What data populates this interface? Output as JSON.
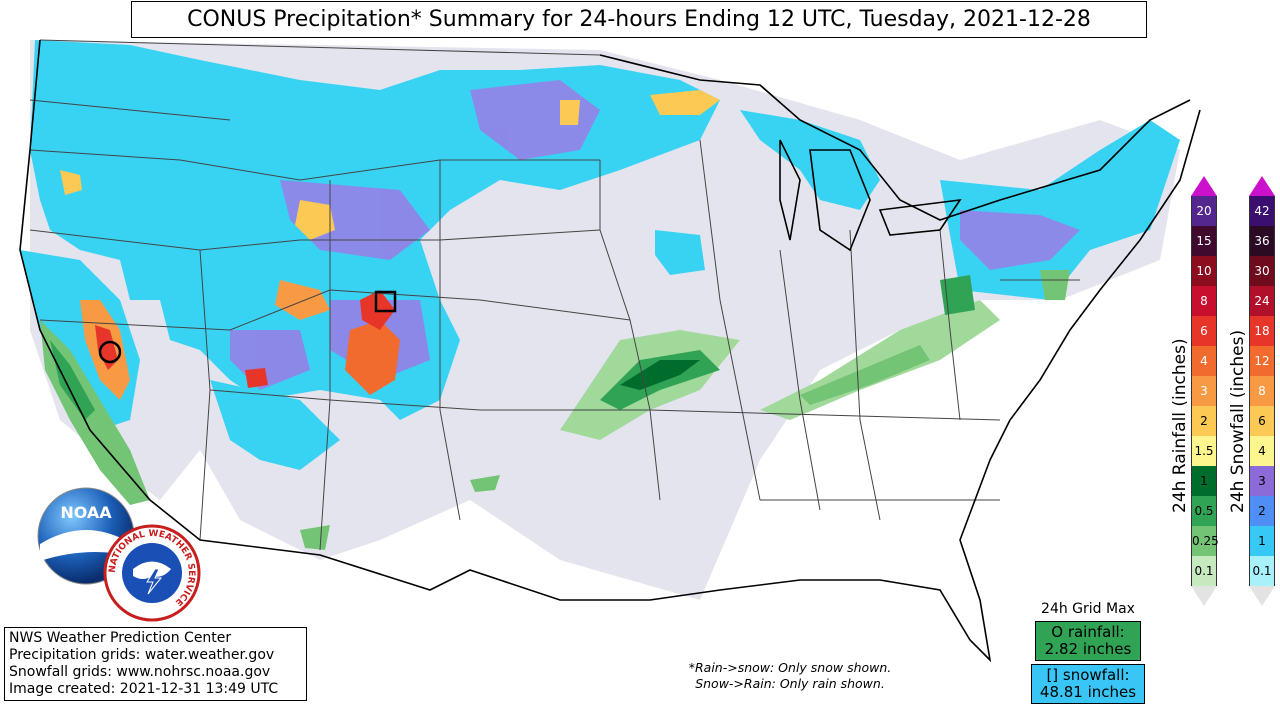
{
  "title": "CONUS Precipitation* Summary for 24-hours Ending 12 UTC, Tuesday, 2021-12-28",
  "credits": [
    "NWS Weather Prediction Center",
    "Precipitation grids: water.weather.gov",
    "Snowfall grids: www.nohrsc.noaa.gov",
    "Image created: 2021-12-31 13:49 UTC"
  ],
  "note": [
    "*Rain->snow: Only snow shown.",
    "Snow->Rain: Only rain shown."
  ],
  "grid_max": {
    "title": "24h Grid Max",
    "rainfall_label": "O rainfall:",
    "rainfall_value": "2.82 inches",
    "snowfall_label": "[] snowfall:",
    "snowfall_value": "48.81 inches"
  },
  "rain_scale": {
    "label": "24h Rainfall (inches)",
    "levels": [
      {
        "value": "20",
        "color": "#54278f",
        "text_color": "#ffffff"
      },
      {
        "value": "15",
        "color": "#3f0a2e",
        "text_color": "#ffffff"
      },
      {
        "value": "10",
        "color": "#8b0d1e",
        "text_color": "#ffffff"
      },
      {
        "value": "8",
        "color": "#c8102e",
        "text_color": "#ffffff"
      },
      {
        "value": "6",
        "color": "#e8352a",
        "text_color": "#ffffff"
      },
      {
        "value": "4",
        "color": "#f26b2e",
        "text_color": "#ffffff"
      },
      {
        "value": "3",
        "color": "#f79a43",
        "text_color": "#ffffff"
      },
      {
        "value": "2",
        "color": "#fbc954",
        "text_color": "#000000"
      },
      {
        "value": "1.5",
        "color": "#fdf58e",
        "text_color": "#000000"
      },
      {
        "value": "1",
        "color": "#006d2c",
        "text_color": "#000000"
      },
      {
        "value": "0.5",
        "color": "#31a354",
        "text_color": "#000000"
      },
      {
        "value": "0.25",
        "color": "#74c476",
        "text_color": "#000000"
      },
      {
        "value": "0.1",
        "color": "#c7e9c0",
        "text_color": "#000000"
      }
    ]
  },
  "snow_scale": {
    "label": "24h Snowfall (inches)",
    "levels": [
      {
        "value": "42",
        "color": "#3b0f6f",
        "text_color": "#ffffff"
      },
      {
        "value": "36",
        "color": "#2b0a24",
        "text_color": "#ffffff"
      },
      {
        "value": "30",
        "color": "#6e0b1c",
        "text_color": "#ffffff"
      },
      {
        "value": "24",
        "color": "#b0102a",
        "text_color": "#ffffff"
      },
      {
        "value": "18",
        "color": "#e8352a",
        "text_color": "#ffffff"
      },
      {
        "value": "12",
        "color": "#f26b2e",
        "text_color": "#ffffff"
      },
      {
        "value": "8",
        "color": "#f79a43",
        "text_color": "#ffffff"
      },
      {
        "value": "6",
        "color": "#fbc954",
        "text_color": "#000000"
      },
      {
        "value": "4",
        "color": "#fdf58e",
        "text_color": "#000000"
      },
      {
        "value": "3",
        "color": "#8c6bd8",
        "text_color": "#000000"
      },
      {
        "value": "2",
        "color": "#4f8ef5",
        "text_color": "#000000"
      },
      {
        "value": "1",
        "color": "#38c8f5",
        "text_color": "#000000"
      },
      {
        "value": "0.1",
        "color": "#a8f0fa",
        "text_color": "#000000"
      }
    ]
  },
  "logos": {
    "noaa": "NOAA",
    "nws": "NATIONAL WEATHER SERVICE"
  }
}
